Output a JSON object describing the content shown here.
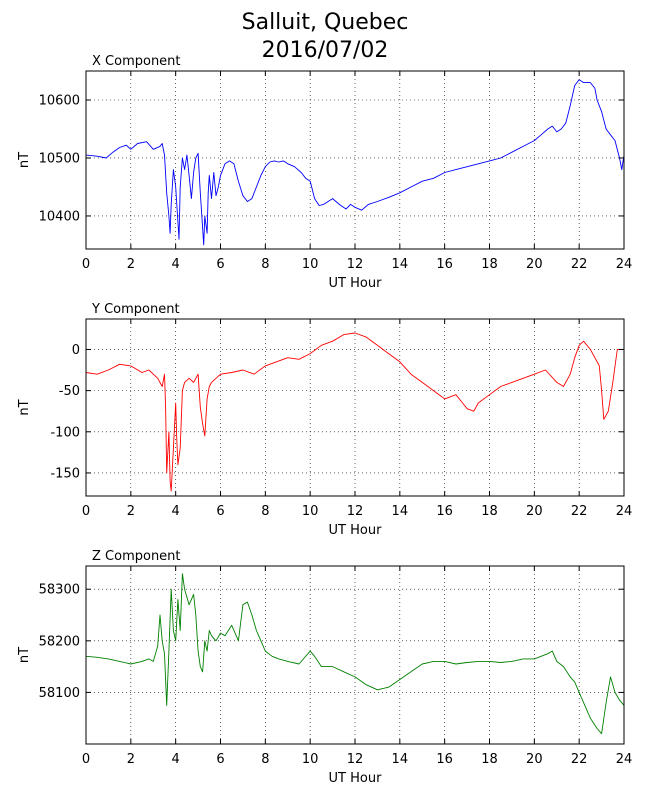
{
  "title_line1": "Salluit, Quebec",
  "title_line2": "2016/07/02",
  "chart_data": [
    {
      "type": "line",
      "title": "X Component",
      "xlabel": "UT Hour",
      "ylabel": "nT",
      "xlim": [
        0,
        24
      ],
      "ylim": [
        10343,
        10650
      ],
      "xticks": [
        0,
        2,
        4,
        6,
        8,
        10,
        12,
        14,
        16,
        18,
        20,
        22,
        24
      ],
      "yticks": [
        10400,
        10500,
        10600
      ],
      "grid": true,
      "color": "#0000ff",
      "series": [
        {
          "x": [
            0,
            0.5,
            0.9,
            1.2,
            1.5,
            1.8,
            2.0,
            2.3,
            2.7,
            3.0,
            3.3,
            3.4,
            3.5,
            3.6,
            3.7,
            3.75,
            3.8,
            3.9,
            4.0,
            4.05,
            4.1,
            4.15,
            4.2,
            4.3,
            4.4,
            4.5,
            4.6,
            4.7,
            4.8,
            4.9,
            5.0,
            5.1,
            5.2,
            5.25,
            5.3,
            5.4,
            5.45,
            5.5,
            5.6,
            5.7,
            5.8,
            5.9,
            6.0,
            6.2,
            6.4,
            6.6,
            6.8,
            7.0,
            7.2,
            7.4,
            7.6,
            7.8,
            8.0,
            8.2,
            8.4,
            8.6,
            8.8,
            9.0,
            9.3,
            9.6,
            9.8,
            10.0,
            10.2,
            10.4,
            10.6,
            10.8,
            11.0,
            11.3,
            11.6,
            11.8,
            12.0,
            12.3,
            12.6,
            13.0,
            13.5,
            14.0,
            14.5,
            15.0,
            15.5,
            16.0,
            16.5,
            17.0,
            17.5,
            18.0,
            18.5,
            19.0,
            19.5,
            20.0,
            20.3,
            20.6,
            20.8,
            21.0,
            21.2,
            21.4,
            21.6,
            21.8,
            22.0,
            22.2,
            22.5,
            22.7,
            22.8,
            22.9,
            23.0,
            23.2,
            23.4,
            23.6,
            23.8,
            23.9,
            24.0
          ],
          "y": [
            10505,
            10503,
            10500,
            10510,
            10518,
            10522,
            10515,
            10525,
            10528,
            10515,
            10520,
            10525,
            10505,
            10440,
            10400,
            10370,
            10420,
            10480,
            10450,
            10420,
            10390,
            10360,
            10450,
            10500,
            10480,
            10505,
            10470,
            10430,
            10475,
            10500,
            10508,
            10440,
            10380,
            10350,
            10400,
            10370,
            10440,
            10470,
            10430,
            10475,
            10435,
            10450,
            10470,
            10490,
            10495,
            10490,
            10460,
            10435,
            10425,
            10430,
            10450,
            10470,
            10485,
            10493,
            10495,
            10493,
            10495,
            10490,
            10485,
            10475,
            10465,
            10460,
            10430,
            10418,
            10420,
            10425,
            10430,
            10420,
            10412,
            10420,
            10415,
            10410,
            10420,
            10425,
            10432,
            10440,
            10450,
            10460,
            10465,
            10475,
            10480,
            10485,
            10490,
            10495,
            10500,
            10510,
            10520,
            10530,
            10540,
            10550,
            10555,
            10545,
            10550,
            10560,
            10590,
            10625,
            10635,
            10630,
            10630,
            10620,
            10600,
            10590,
            10580,
            10550,
            10540,
            10530,
            10500,
            10480,
            10505
          ]
        }
      ]
    },
    {
      "type": "line",
      "title": "Y Component",
      "xlabel": "UT Hour",
      "ylabel": "nT",
      "xlim": [
        0,
        24
      ],
      "ylim": [
        -178,
        37
      ],
      "xticks": [
        0,
        2,
        4,
        6,
        8,
        10,
        12,
        14,
        16,
        18,
        20,
        22,
        24
      ],
      "yticks": [
        -150,
        -100,
        -50,
        0
      ],
      "grid": true,
      "color": "#ff0000",
      "series": [
        {
          "x": [
            0,
            0.5,
            1.0,
            1.5,
            2.0,
            2.5,
            2.8,
            3.0,
            3.2,
            3.4,
            3.5,
            3.55,
            3.6,
            3.7,
            3.75,
            3.8,
            3.9,
            4.0,
            4.05,
            4.1,
            4.2,
            4.3,
            4.4,
            4.6,
            4.8,
            5.0,
            5.1,
            5.2,
            5.3,
            5.4,
            5.5,
            5.6,
            5.8,
            6.0,
            6.5,
            7.0,
            7.5,
            8.0,
            8.5,
            9.0,
            9.5,
            10.0,
            10.5,
            11.0,
            11.5,
            12.0,
            12.5,
            13.0,
            13.5,
            14.0,
            14.5,
            15.0,
            15.5,
            16.0,
            16.5,
            16.8,
            17.0,
            17.3,
            17.5,
            18.0,
            18.5,
            19.0,
            19.5,
            20.0,
            20.5,
            21.0,
            21.3,
            21.6,
            21.8,
            22.0,
            22.2,
            22.5,
            22.7,
            22.9,
            23.0,
            23.1,
            23.3,
            23.5,
            23.7,
            24.0
          ],
          "y": [
            -28,
            -30,
            -25,
            -18,
            -20,
            -28,
            -25,
            -30,
            -35,
            -45,
            -30,
            -70,
            -150,
            -100,
            -160,
            -172,
            -120,
            -65,
            -110,
            -140,
            -120,
            -50,
            -40,
            -35,
            -40,
            -30,
            -70,
            -90,
            -105,
            -60,
            -45,
            -40,
            -35,
            -30,
            -28,
            -25,
            -30,
            -20,
            -15,
            -10,
            -12,
            -5,
            5,
            10,
            18,
            20,
            15,
            5,
            -5,
            -15,
            -30,
            -40,
            -50,
            -60,
            -55,
            -65,
            -72,
            -75,
            -65,
            -55,
            -45,
            -40,
            -35,
            -30,
            -25,
            -40,
            -45,
            -30,
            -10,
            5,
            10,
            0,
            -10,
            -20,
            -50,
            -85,
            -75,
            -40,
            0,
            0
          ]
        }
      ]
    },
    {
      "type": "line",
      "title": "Z Component",
      "xlabel": "UT Hour",
      "ylabel": "nT",
      "xlim": [
        0,
        24
      ],
      "ylim": [
        58000,
        58345
      ],
      "xticks": [
        0,
        2,
        4,
        6,
        8,
        10,
        12,
        14,
        16,
        18,
        20,
        22,
        24
      ],
      "yticks": [
        58100,
        58200,
        58300
      ],
      "grid": true,
      "color": "#008000",
      "series": [
        {
          "x": [
            0,
            0.5,
            1.0,
            1.5,
            2.0,
            2.5,
            2.8,
            3.0,
            3.2,
            3.3,
            3.4,
            3.5,
            3.6,
            3.7,
            3.8,
            3.9,
            4.0,
            4.1,
            4.2,
            4.3,
            4.4,
            4.6,
            4.8,
            4.9,
            5.0,
            5.1,
            5.2,
            5.3,
            5.4,
            5.5,
            5.6,
            5.8,
            6.0,
            6.2,
            6.5,
            6.8,
            7.0,
            7.2,
            7.4,
            7.6,
            7.8,
            8.0,
            8.3,
            8.6,
            9.0,
            9.5,
            10.0,
            10.2,
            10.5,
            11.0,
            11.5,
            12.0,
            12.5,
            13.0,
            13.5,
            14.0,
            14.5,
            15.0,
            15.5,
            16.0,
            16.5,
            17.0,
            17.5,
            18.0,
            18.5,
            19.0,
            19.5,
            20.0,
            20.3,
            20.6,
            20.8,
            21.0,
            21.3,
            21.6,
            21.8,
            22.0,
            22.3,
            22.5,
            22.8,
            23.0,
            23.2,
            23.4,
            23.6,
            23.8,
            24.0
          ],
          "y": [
            58170,
            58168,
            58165,
            58160,
            58155,
            58160,
            58165,
            58160,
            58190,
            58250,
            58200,
            58175,
            58075,
            58180,
            58300,
            58220,
            58200,
            58280,
            58220,
            58330,
            58300,
            58270,
            58290,
            58250,
            58180,
            58150,
            58140,
            58200,
            58180,
            58220,
            58210,
            58200,
            58215,
            58210,
            58230,
            58200,
            58270,
            58275,
            58250,
            58220,
            58200,
            58180,
            58170,
            58165,
            58160,
            58155,
            58180,
            58170,
            58150,
            58150,
            58140,
            58130,
            58115,
            58105,
            58110,
            58125,
            58140,
            58155,
            58160,
            58160,
            58155,
            58158,
            58160,
            58160,
            58158,
            58160,
            58165,
            58165,
            58170,
            58175,
            58180,
            58160,
            58150,
            58130,
            58120,
            58100,
            58070,
            58050,
            58030,
            58020,
            58080,
            58130,
            58100,
            58085,
            58075
          ]
        }
      ]
    }
  ]
}
